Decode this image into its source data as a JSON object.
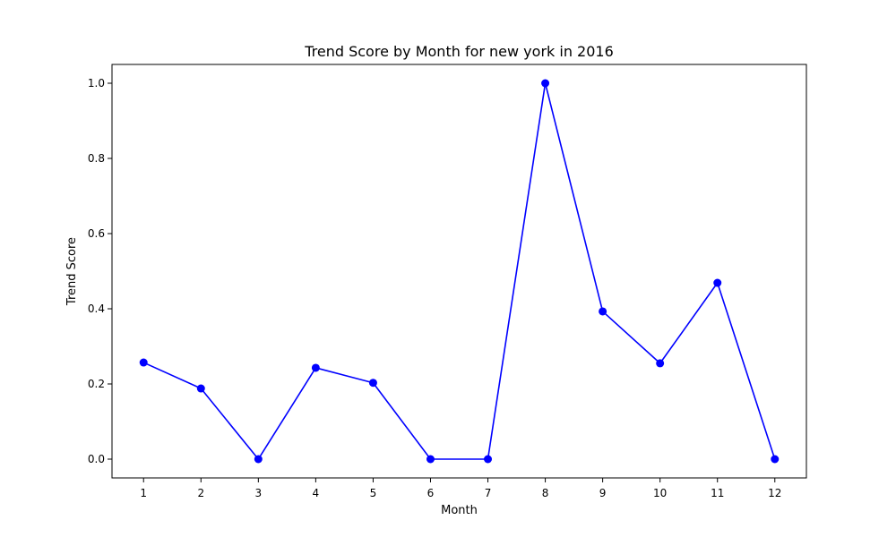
{
  "chart_data": {
    "type": "line",
    "title": "Trend Score by Month for new york in 2016",
    "xlabel": "Month",
    "ylabel": "Trend Score",
    "x": [
      1,
      2,
      3,
      4,
      5,
      6,
      7,
      8,
      9,
      10,
      11,
      12
    ],
    "x_ticks": [
      "1",
      "2",
      "3",
      "4",
      "5",
      "6",
      "7",
      "8",
      "9",
      "10",
      "11",
      "12"
    ],
    "y_ticks": [
      "0.0",
      "0.2",
      "0.4",
      "0.6",
      "0.8",
      "1.0"
    ],
    "series": [
      {
        "values": [
          0.257,
          0.188,
          0.0,
          0.243,
          0.203,
          0.0,
          0.0,
          1.0,
          0.393,
          0.255,
          0.469,
          0.0
        ],
        "color": "#0000ff",
        "marker": "circle"
      }
    ],
    "xlim": [
      0.45,
      12.55
    ],
    "ylim": [
      -0.05,
      1.05
    ],
    "grid": false,
    "legend": "none"
  }
}
